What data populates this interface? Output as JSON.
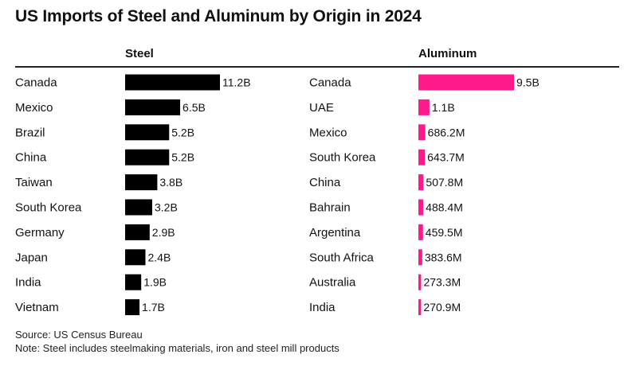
{
  "title": "US Imports of Steel and Aluminum by Origin in 2024",
  "chart_data": [
    {
      "type": "bar",
      "orientation": "horizontal",
      "title": "Steel",
      "color": "#000000",
      "categories": [
        "Canada",
        "Mexico",
        "Brazil",
        "China",
        "Taiwan",
        "South Korea",
        "Germany",
        "Japan",
        "India",
        "Vietnam"
      ],
      "values": [
        11.2,
        6.5,
        5.2,
        5.2,
        3.8,
        3.2,
        2.9,
        2.4,
        1.9,
        1.7
      ],
      "value_labels": [
        "11.2B",
        "6.5B",
        "5.2B",
        "5.2B",
        "3.8B",
        "3.2B",
        "2.9B",
        "2.4B",
        "1.9B",
        "1.7B"
      ],
      "unit": "USD billions"
    },
    {
      "type": "bar",
      "orientation": "horizontal",
      "title": "Aluminum",
      "color": "#ff1a8c",
      "categories": [
        "Canada",
        "UAE",
        "Mexico",
        "South Korea",
        "China",
        "Bahrain",
        "Argentina",
        "South Africa",
        "Australia",
        "India"
      ],
      "values": [
        9.5,
        1.1,
        0.6862,
        0.6437,
        0.5078,
        0.4884,
        0.4595,
        0.3836,
        0.2733,
        0.2709
      ],
      "value_labels": [
        "9.5B",
        "1.1B",
        "686.2M",
        "643.7M",
        "507.8M",
        "488.4M",
        "459.5M",
        "383.6M",
        "273.3M",
        "270.9M"
      ],
      "unit": "USD billions"
    }
  ],
  "footer": {
    "source": "Source: US Census Bureau",
    "note": "Note: Steel includes steelmaking materials, iron and steel mill products"
  }
}
